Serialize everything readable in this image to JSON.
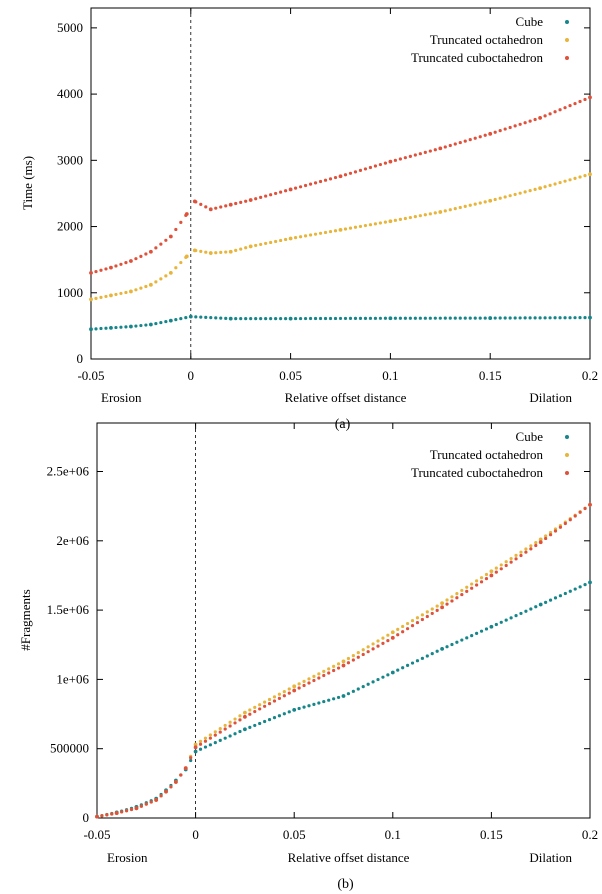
{
  "chart_data": [
    {
      "type": "scatter",
      "panel": "(a)",
      "xlabel": "Relative offset distance",
      "ylabel": "Time (ms)",
      "xlim": [
        -0.05,
        0.2
      ],
      "ylim": [
        0,
        5300
      ],
      "x_ticks": [
        "-0.05",
        "0",
        "0.05",
        "0.1",
        "0.15",
        "0.2"
      ],
      "y_ticks": [
        "0",
        "1000",
        "2000",
        "3000",
        "4000",
        "5000"
      ],
      "region_labels": {
        "left": "Erosion",
        "right": "Dilation"
      },
      "caption": "(a)",
      "legend_position": "top-right",
      "grid": false,
      "divider_x": 0,
      "series": [
        {
          "name": "Cube",
          "color": "#16868a",
          "x": [
            -0.05,
            -0.04,
            -0.03,
            -0.02,
            -0.01,
            0,
            0.02,
            0.05,
            0.1,
            0.15,
            0.2
          ],
          "y": [
            450,
            470,
            490,
            520,
            580,
            640,
            610,
            610,
            615,
            618,
            625
          ]
        },
        {
          "name": "Truncated octahedron",
          "color": "#e8b53a",
          "x": [
            -0.05,
            -0.04,
            -0.03,
            -0.02,
            -0.01,
            -0.002,
            0.002,
            0.01,
            0.02,
            0.03,
            0.05,
            0.075,
            0.1,
            0.125,
            0.15,
            0.175,
            0.2
          ],
          "y": [
            900,
            960,
            1020,
            1120,
            1300,
            1550,
            1640,
            1600,
            1620,
            1700,
            1820,
            1950,
            2080,
            2220,
            2390,
            2580,
            2790
          ]
        },
        {
          "name": "Truncated cuboctahedron",
          "color": "#e0513b",
          "x": [
            -0.05,
            -0.04,
            -0.03,
            -0.02,
            -0.01,
            -0.002,
            0.002,
            0.01,
            0.02,
            0.03,
            0.05,
            0.075,
            0.1,
            0.125,
            0.15,
            0.175,
            0.2
          ],
          "y": [
            1300,
            1380,
            1480,
            1620,
            1850,
            2190,
            2380,
            2260,
            2330,
            2400,
            2560,
            2760,
            2980,
            3180,
            3400,
            3640,
            3950
          ]
        }
      ]
    },
    {
      "type": "scatter",
      "panel": "(b)",
      "xlabel": "Relative offset distance",
      "ylabel": "#Fragments",
      "xlim": [
        -0.05,
        0.2
      ],
      "ylim": [
        0,
        2850000
      ],
      "x_ticks": [
        "-0.05",
        "0",
        "0.05",
        "0.1",
        "0.15",
        "0.2"
      ],
      "y_ticks": [
        "0",
        "500000",
        "1e+06",
        "1.5e+06",
        "2e+06",
        "2.5e+06"
      ],
      "region_labels": {
        "left": "Erosion",
        "right": "Dilation"
      },
      "caption": "(b)",
      "legend_position": "top-right",
      "grid": false,
      "divider_x": 0,
      "series": [
        {
          "name": "Cube",
          "color": "#16868a",
          "x": [
            -0.05,
            -0.04,
            -0.03,
            -0.02,
            -0.015,
            -0.01,
            -0.005,
            0,
            0.025,
            0.05,
            0.075,
            0.1,
            0.125,
            0.15,
            0.175,
            0.2
          ],
          "y": [
            10000,
            40000,
            80000,
            140000,
            200000,
            270000,
            350000,
            480000,
            640000,
            780000,
            880000,
            1050000,
            1220000,
            1380000,
            1540000,
            1700000
          ]
        },
        {
          "name": "Truncated octahedron",
          "color": "#e8b53a",
          "x": [
            -0.05,
            -0.04,
            -0.03,
            -0.02,
            -0.015,
            -0.01,
            -0.005,
            0,
            0.025,
            0.05,
            0.075,
            0.1,
            0.125,
            0.15,
            0.175,
            0.2
          ],
          "y": [
            10000,
            35000,
            70000,
            130000,
            190000,
            260000,
            360000,
            530000,
            760000,
            950000,
            1130000,
            1340000,
            1550000,
            1780000,
            2010000,
            2260000
          ]
        },
        {
          "name": "Truncated cuboctahedron",
          "color": "#e0513b",
          "x": [
            -0.05,
            -0.04,
            -0.03,
            -0.02,
            -0.015,
            -0.01,
            -0.005,
            0,
            0.025,
            0.05,
            0.075,
            0.1,
            0.125,
            0.15,
            0.175,
            0.2
          ],
          "y": [
            10000,
            35000,
            70000,
            130000,
            190000,
            260000,
            360000,
            510000,
            730000,
            920000,
            1100000,
            1300000,
            1520000,
            1750000,
            1990000,
            2260000
          ]
        }
      ]
    }
  ]
}
